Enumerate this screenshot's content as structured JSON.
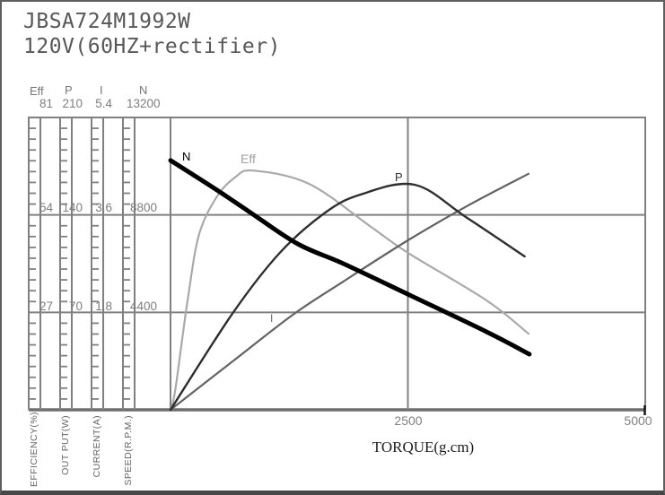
{
  "title": {
    "model": "JBSA724M1992W",
    "power_supply": "120V(60HZ+rectifier)"
  },
  "colors": {
    "grid": "#808080",
    "axis_heavy": "#6e6e6e",
    "frame": "#5f5f5f",
    "curve_n": "#000000",
    "curve_p": "#2e2e2e",
    "curve_i": "#636363",
    "curve_eff": "#a9a9a9",
    "tick_label": "#7d7d7d",
    "title_text": "#575757"
  },
  "y_axes": [
    {
      "symbol": "Eff",
      "name": "EFFICIENCY(%)",
      "unit": "%",
      "max": 81,
      "ticks": [
        "81",
        "54",
        "27"
      ]
    },
    {
      "symbol": "P",
      "name": "OUT PUT(W)",
      "unit": "W",
      "max": 210,
      "ticks": [
        "210",
        "140",
        "70"
      ]
    },
    {
      "symbol": "I",
      "name": "CURRENT(A)",
      "unit": "A",
      "max": 5.4,
      "ticks": [
        "5.4",
        "3.6",
        "1.8"
      ]
    },
    {
      "symbol": "N",
      "name": "SPEED(R.P.M.)",
      "unit": "R.P.M.",
      "max": 13200,
      "ticks": [
        "13200",
        "8800",
        "4400"
      ]
    }
  ],
  "x_axis": {
    "label": "TORQUE(g.cm)",
    "ticks": [
      "2500",
      "5000"
    ],
    "max": 5000
  },
  "chart_data": {
    "type": "line",
    "title": "JBSA724M1992W 120V(60HZ+rectifier) motor performance curves",
    "xlabel": "TORQUE(g.cm)",
    "xlim": [
      0,
      5000
    ],
    "grid": "major gridlines at 1/3 and 2/3 of y-range and at x=2500",
    "legend_position": "inline curve labels",
    "series": [
      {
        "name": "N",
        "label": "N",
        "unit": "R.P.M.",
        "axis_max": 13200,
        "color": "#000000",
        "stroke_width": 5,
        "points": [
          [
            0,
            11260
          ],
          [
            490,
            9920
          ],
          [
            840,
            8910
          ],
          [
            1340,
            7490
          ],
          [
            1820,
            6600
          ],
          [
            2500,
            5220
          ],
          [
            3330,
            3520
          ],
          [
            3780,
            2510
          ]
        ]
      },
      {
        "name": "Eff",
        "label": "Eff",
        "unit": "%",
        "axis_max": 81,
        "color": "#a9a9a9",
        "stroke_width": 2.2,
        "points": [
          [
            0,
            0
          ],
          [
            50,
            5.5
          ],
          [
            180,
            30.3
          ],
          [
            300,
            48.5
          ],
          [
            490,
            59.1
          ],
          [
            680,
            64.4
          ],
          [
            870,
            66.3
          ],
          [
            1460,
            62.6
          ],
          [
            2100,
            50.9
          ],
          [
            2500,
            43.5
          ],
          [
            3330,
            30.3
          ],
          [
            3770,
            21.1
          ]
        ]
      },
      {
        "name": "P",
        "label": "P",
        "unit": "W",
        "axis_max": 210,
        "color": "#2e2e2e",
        "stroke_width": 2.4,
        "points": [
          [
            0,
            0
          ],
          [
            650,
            68.9
          ],
          [
            1150,
            112.7
          ],
          [
            1630,
            141.7
          ],
          [
            2000,
            154.6
          ],
          [
            2570,
            161.7
          ],
          [
            3110,
            138.5
          ],
          [
            3730,
            110.2
          ]
        ]
      },
      {
        "name": "I",
        "label": "I",
        "unit": "A",
        "axis_max": 5.4,
        "color": "#636363",
        "stroke_width": 2.2,
        "points": [
          [
            0,
            0
          ],
          [
            650,
            0.89
          ],
          [
            1300,
            1.77
          ],
          [
            1820,
            2.37
          ],
          [
            2500,
            3.13
          ],
          [
            3140,
            3.78
          ],
          [
            3770,
            4.36
          ]
        ]
      }
    ]
  }
}
